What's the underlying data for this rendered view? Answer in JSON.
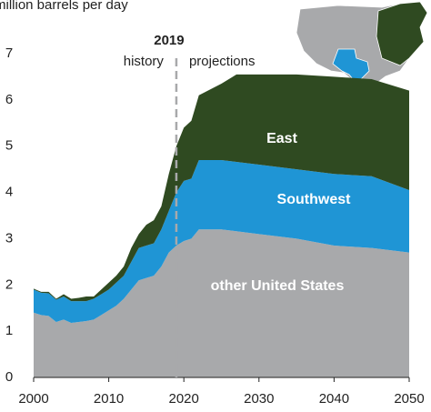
{
  "chart_data": {
    "type": "stacked_area",
    "y_label": "million barrels per day",
    "annotations": {
      "year": "2019",
      "left": "history",
      "right": "projections"
    },
    "divider_x": 2019,
    "x": [
      2000,
      2001,
      2002,
      2003,
      2004,
      2005,
      2006,
      2007,
      2008,
      2009,
      2010,
      2011,
      2012,
      2013,
      2014,
      2015,
      2016,
      2017,
      2018,
      2019,
      2020,
      2021,
      2022,
      2025,
      2027,
      2030,
      2035,
      2040,
      2045,
      2050
    ],
    "series": [
      {
        "name": "other United States",
        "color": "#a8a9ab",
        "values": [
          1.4,
          1.35,
          1.33,
          1.2,
          1.25,
          1.18,
          1.2,
          1.22,
          1.25,
          1.35,
          1.45,
          1.55,
          1.7,
          1.9,
          2.1,
          2.15,
          2.2,
          2.4,
          2.7,
          2.85,
          2.95,
          3.0,
          3.2,
          3.2,
          3.16,
          3.1,
          3.0,
          2.85,
          2.8,
          2.7
        ]
      },
      {
        "name": "Southwest",
        "color": "#1f95d5",
        "values": [
          0.5,
          0.48,
          0.49,
          0.48,
          0.5,
          0.47,
          0.45,
          0.43,
          0.45,
          0.45,
          0.45,
          0.5,
          0.5,
          0.6,
          0.7,
          0.7,
          0.7,
          0.8,
          0.9,
          1.15,
          1.3,
          1.3,
          1.5,
          1.5,
          1.5,
          1.5,
          1.5,
          1.55,
          1.55,
          1.35
        ]
      },
      {
        "name": "East",
        "color": "#2f4a21",
        "values": [
          0.02,
          0.02,
          0.03,
          0.02,
          0.05,
          0.05,
          0.07,
          0.1,
          0.05,
          0.1,
          0.15,
          0.15,
          0.2,
          0.3,
          0.3,
          0.45,
          0.5,
          0.5,
          0.8,
          1.0,
          1.15,
          1.25,
          1.4,
          1.65,
          1.89,
          1.95,
          2.05,
          2.1,
          2.1,
          2.15
        ]
      }
    ],
    "xlim": [
      2000,
      2050
    ],
    "xticks": [
      2000,
      2010,
      2020,
      2030,
      2040,
      2050
    ],
    "ylim": [
      0,
      7
    ],
    "yticks": [
      0,
      1,
      2,
      3,
      4,
      5,
      6,
      7
    ]
  }
}
